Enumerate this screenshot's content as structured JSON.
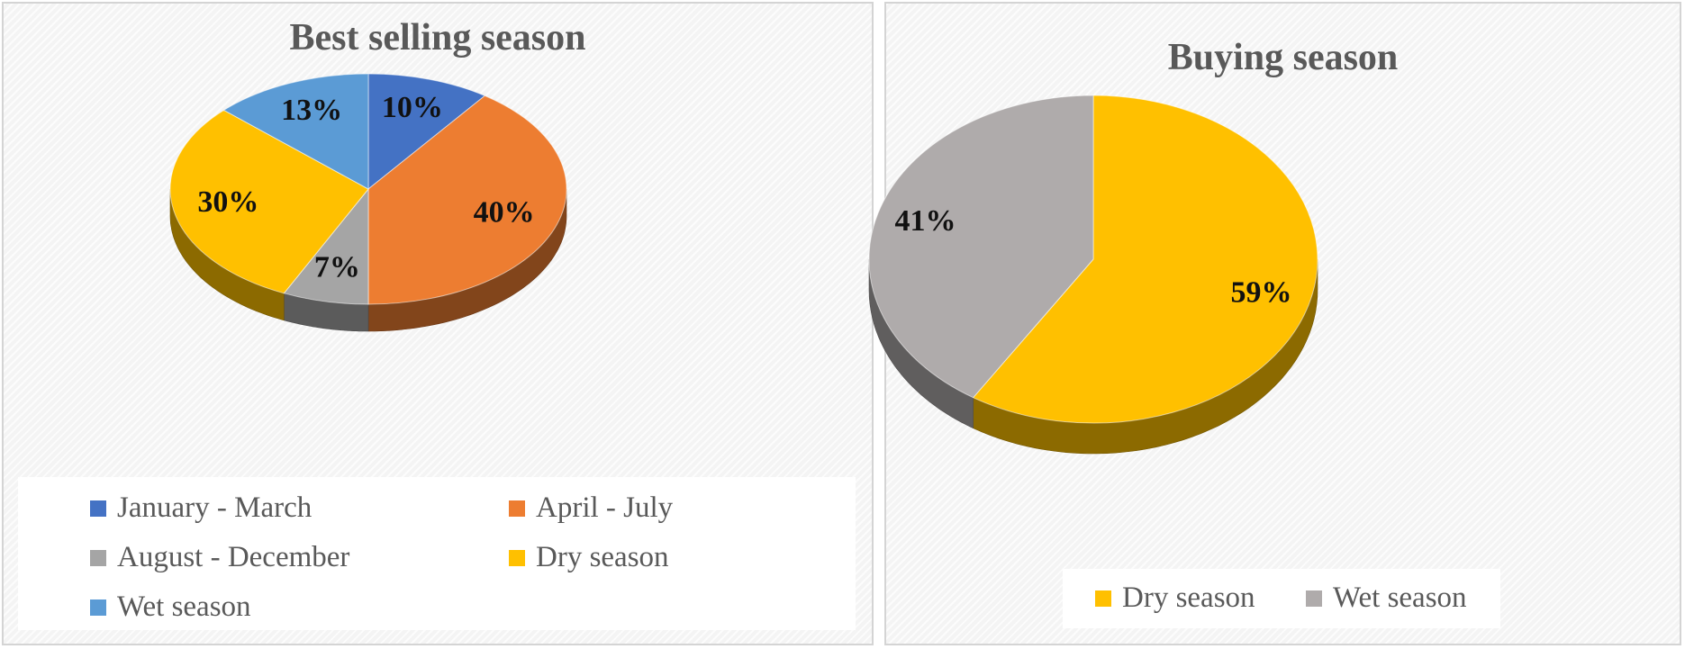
{
  "chart_data": [
    {
      "type": "pie",
      "title": "Best selling season",
      "slices": [
        {
          "label": "January - March",
          "value": 10,
          "data_label": "10%",
          "color": "#4472C4"
        },
        {
          "label": "April - July",
          "value": 40,
          "data_label": "40%",
          "color": "#ED7D31"
        },
        {
          "label": "August - December",
          "value": 7,
          "data_label": "7%",
          "color": "#A5A5A5"
        },
        {
          "label": "Dry season",
          "value": 30,
          "data_label": "30%",
          "color": "#FFC000"
        },
        {
          "label": "Wet season",
          "value": 13,
          "data_label": "13%",
          "color": "#5B9BD5"
        }
      ],
      "legend_position": "bottom",
      "style": "3d"
    },
    {
      "type": "pie",
      "title": "Buying season",
      "slices": [
        {
          "label": "Dry season",
          "value": 59,
          "data_label": "59%",
          "color": "#FFC000"
        },
        {
          "label": "Wet season",
          "value": 41,
          "data_label": "41%",
          "color": "#AFABAB"
        }
      ],
      "legend_position": "bottom",
      "style": "3d"
    }
  ]
}
